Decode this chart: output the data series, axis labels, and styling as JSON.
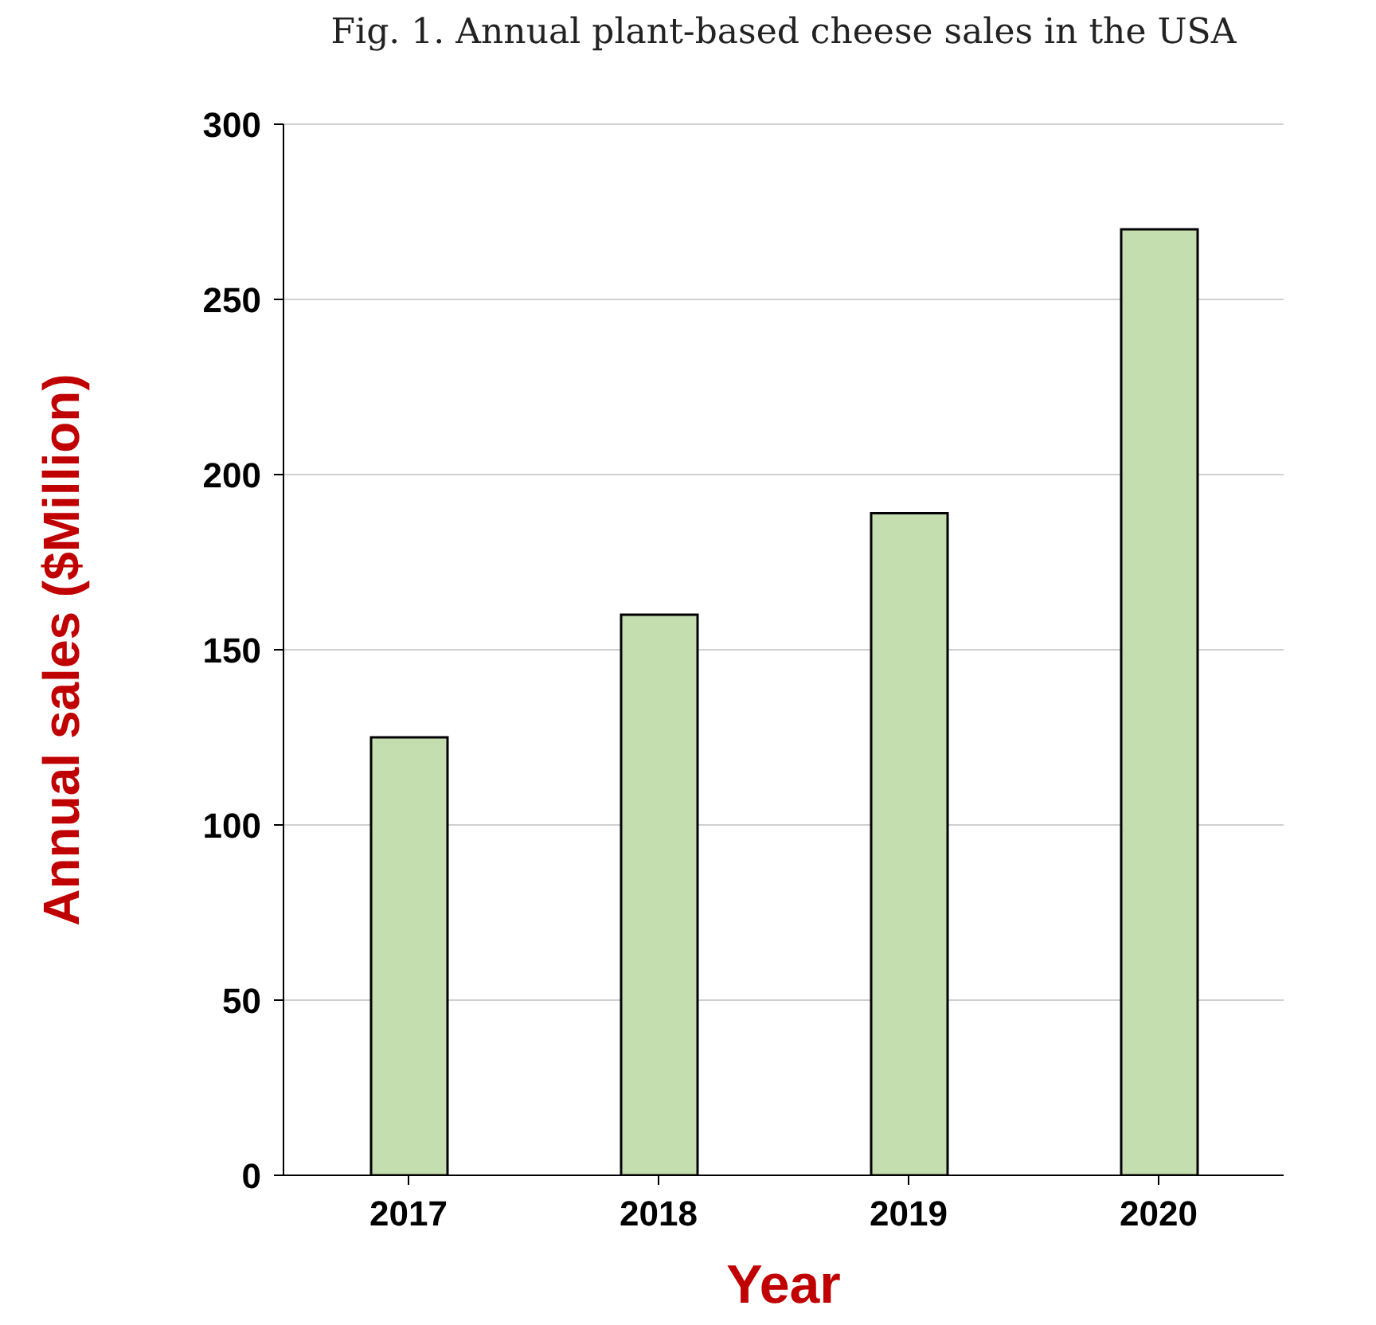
{
  "chart_data": {
    "type": "bar",
    "title": "Fig. 1. Annual plant-based cheese sales in the USA",
    "xlabel": "Year",
    "ylabel": "Annual sales ($Million)",
    "categories": [
      "2017",
      "2018",
      "2019",
      "2020"
    ],
    "values": [
      125,
      160,
      189,
      270
    ],
    "color": "#c5deb0",
    "ylim": [
      0,
      300
    ],
    "yticks": [
      0,
      50,
      100,
      150,
      200,
      250,
      300
    ],
    "grid": "y"
  }
}
